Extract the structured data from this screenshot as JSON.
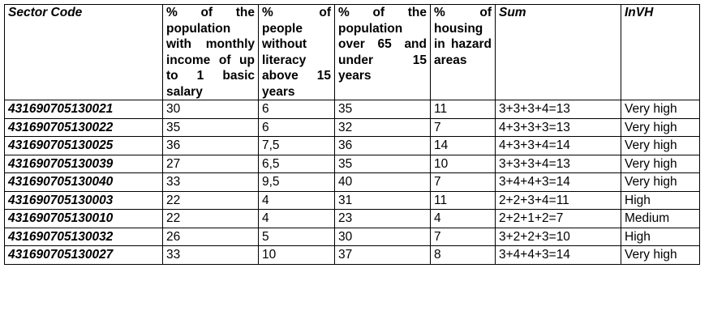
{
  "table": {
    "header": [
      "Sector Code",
      "% of the population with monthly income of up to 1 basic salary",
      "% of people without literacy above 15 years",
      "% of the population over 65 and under 15 years",
      "% of housing in hazard areas",
      "Sum",
      "InVH"
    ],
    "rows": [
      [
        "431690705130021",
        "30",
        "6",
        "35",
        "11",
        "3+3+3+4=13",
        "Very high"
      ],
      [
        "431690705130022",
        "35",
        "6",
        "32",
        "7",
        "4+3+3+3=13",
        "Very high"
      ],
      [
        "431690705130025",
        "36",
        "7,5",
        "36",
        "14",
        "4+3+3+4=14",
        "Very high"
      ],
      [
        "431690705130039",
        "27",
        "6,5",
        "35",
        "10",
        "3+3+3+4=13",
        "Very high"
      ],
      [
        "431690705130040",
        "33",
        "9,5",
        "40",
        "7",
        "3+4+4+3=14",
        "Very high"
      ],
      [
        "431690705130003",
        "22",
        "4",
        "31",
        "11",
        "2+2+3+4=11",
        "High"
      ],
      [
        "431690705130010",
        "22",
        "4",
        "23",
        "4",
        "2+2+1+2=7",
        "Medium"
      ],
      [
        "431690705130032",
        "26",
        "5",
        "30",
        "7",
        "3+2+2+3=10",
        "High"
      ],
      [
        "431690705130027",
        "33",
        "10",
        "37",
        "8",
        "3+4+4+3=14",
        "Very high"
      ]
    ]
  }
}
